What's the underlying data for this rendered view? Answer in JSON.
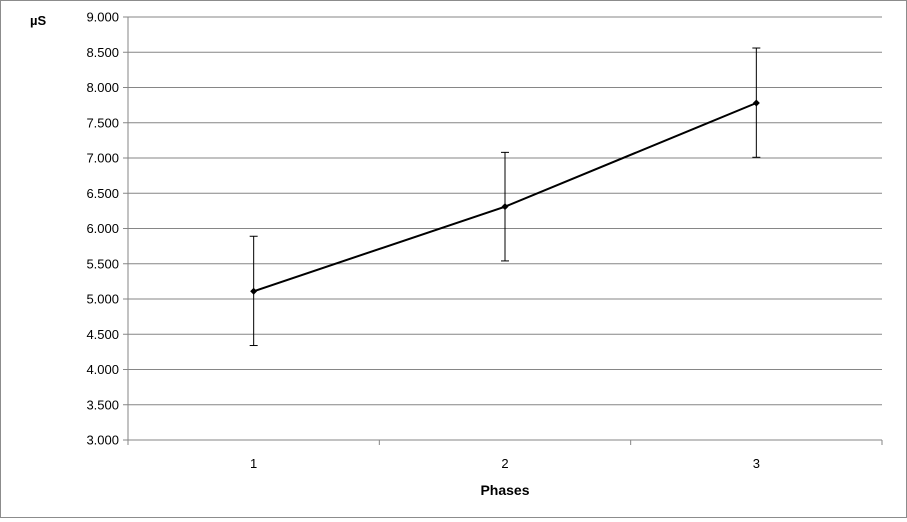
{
  "chart_data": {
    "type": "line",
    "title": "",
    "xlabel": "Phases",
    "ylabel": "µS",
    "categories": [
      "1",
      "2",
      "3"
    ],
    "series": [
      {
        "values": [
          5.11,
          6.31,
          7.78
        ],
        "error_upper": [
          5.89,
          7.08,
          8.56
        ],
        "error_lower": [
          4.34,
          5.54,
          7.01
        ]
      }
    ],
    "ylim": [
      3.0,
      9.0
    ],
    "ytick_step": 0.5,
    "ytick_labels": [
      "3.000",
      "3.500",
      "4.000",
      "4.500",
      "5.000",
      "5.500",
      "6.000",
      "6.500",
      "7.000",
      "7.500",
      "8.000",
      "8.500",
      "9.000"
    ],
    "grid": "horizontal",
    "legend": "none",
    "line_color": "#000000",
    "grid_color": "#868686"
  }
}
